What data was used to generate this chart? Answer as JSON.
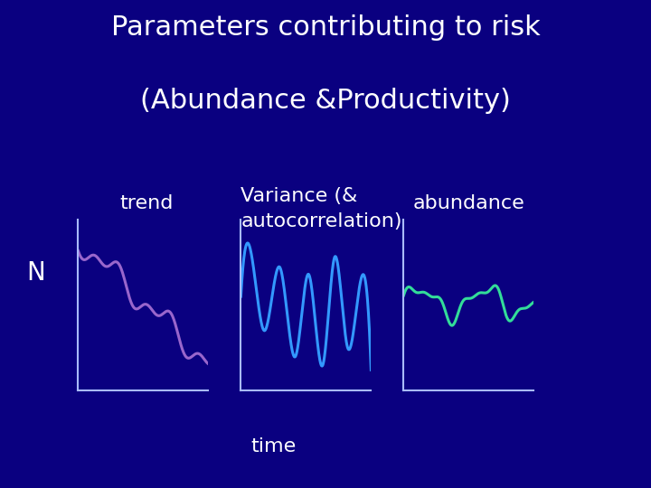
{
  "title_line1": "Parameters contributing to risk",
  "title_line2": "(Abundance &Productivity)",
  "background_color": "#0a0080",
  "text_color": "#FFFFFF",
  "label_trend": "trend",
  "label_variance": "Variance (&\nautocorrelation)",
  "label_abundance": "abundance",
  "label_N": "N",
  "label_time": "time",
  "axes_color": "#AABBFF",
  "trend_color": "#9966CC",
  "variance_color": "#3399FF",
  "abundance_color": "#33DD99",
  "title_fontsize": 22,
  "label_fontsize": 16,
  "n_fontsize": 20
}
